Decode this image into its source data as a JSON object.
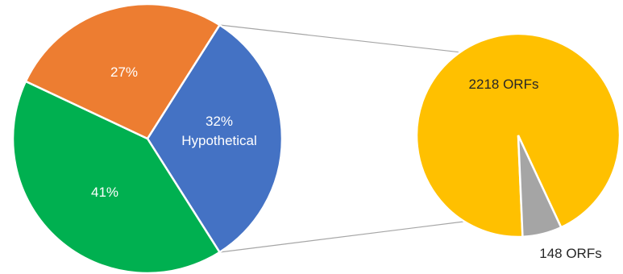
{
  "chart_data": [
    {
      "type": "pie",
      "slices": [
        {
          "label": "Hypothetical",
          "value": 32,
          "value_text": "32%",
          "color": "#4472C4"
        },
        {
          "label": "",
          "value": 41,
          "value_text": "41%",
          "color": "#00B050"
        },
        {
          "label": "",
          "value": 27,
          "value_text": "27%",
          "color": "#ED7D31"
        }
      ]
    },
    {
      "type": "pie",
      "detail_of": "Hypothetical",
      "slices": [
        {
          "label": "2218 ORFs",
          "value": 2218,
          "color": "#FFC000"
        },
        {
          "label": "148 ORFs",
          "value": 148,
          "color": "#A5A5A5"
        }
      ]
    }
  ],
  "text": {
    "main_hyp_pct": "32%",
    "main_hyp_name": "Hypothetical",
    "main_green_pct": "41%",
    "main_orange_pct": "27%",
    "sub_yellow_label": "2218 ORFs",
    "sub_gray_label": "148 ORFs"
  }
}
